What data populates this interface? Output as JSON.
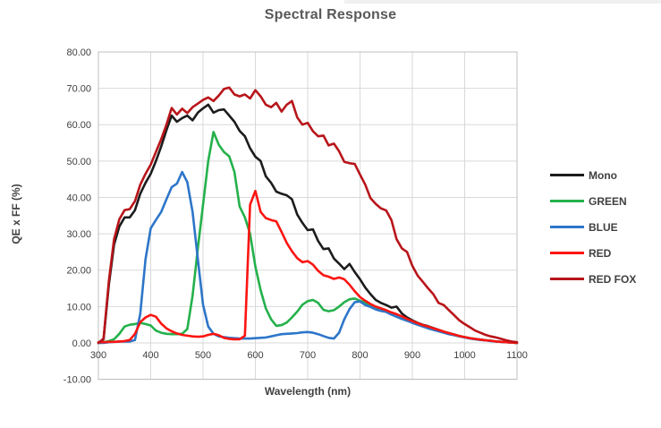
{
  "chart_data": {
    "type": "line",
    "title": "Spectral Response",
    "xlabel": "Wavelength (nm)",
    "ylabel": "QE x FF (%)",
    "xlim": [
      300,
      1100
    ],
    "ylim": [
      -10,
      80
    ],
    "grid": true,
    "legend_position": "right",
    "grid_color": "#d9d9d9",
    "border_color": "#bfbfbf",
    "tick_label_color": "#404040",
    "x_ticks": [
      300,
      400,
      500,
      600,
      700,
      800,
      900,
      1000,
      1100
    ],
    "x_tick_labels": [
      "300",
      "400",
      "500",
      "600",
      "700",
      "800",
      "900",
      "1000",
      "1100"
    ],
    "y_ticks": [
      80,
      70,
      60,
      50,
      40,
      30,
      20,
      10,
      0,
      -10
    ],
    "y_tick_labels": [
      "80.00",
      "70.00",
      "60.00",
      "50.00",
      "40.00",
      "30.00",
      "20.00",
      "10.00",
      "0.00",
      "-10.00"
    ],
    "x": [
      300,
      310,
      320,
      330,
      340,
      350,
      360,
      370,
      380,
      390,
      400,
      410,
      420,
      430,
      440,
      450,
      460,
      470,
      480,
      490,
      500,
      510,
      520,
      530,
      540,
      550,
      560,
      570,
      580,
      590,
      600,
      610,
      620,
      630,
      640,
      650,
      660,
      670,
      680,
      690,
      700,
      710,
      720,
      730,
      740,
      750,
      760,
      770,
      780,
      790,
      800,
      810,
      820,
      830,
      840,
      850,
      860,
      870,
      880,
      890,
      900,
      910,
      920,
      930,
      940,
      950,
      960,
      970,
      980,
      990,
      1000,
      1010,
      1020,
      1030,
      1040,
      1050,
      1060,
      1070,
      1080,
      1090,
      1100
    ],
    "series": [
      {
        "name": "Mono",
        "color": "#1c1c1c",
        "values": [
          0,
          1,
          16,
          27,
          32,
          34.5,
          34.5,
          36.5,
          41,
          44,
          46.5,
          50,
          54,
          58.5,
          62.5,
          60.8,
          61.8,
          62.5,
          61.2,
          63.3,
          64.5,
          65.5,
          63.3,
          64,
          64.2,
          62.5,
          60.8,
          58.3,
          56.8,
          53.5,
          51.2,
          50,
          45.8,
          44,
          41.6,
          41,
          40.6,
          39.5,
          35.3,
          33,
          31,
          31.2,
          28,
          25.8,
          26,
          23.2,
          21.8,
          20.3,
          21.7,
          19.5,
          17.5,
          15.2,
          13.4,
          11.8,
          11,
          10.4,
          9.7,
          10,
          8.1,
          7,
          6.2,
          5.5,
          5,
          4.6,
          4.1,
          3.6,
          3.1,
          2.7,
          2.3,
          1.9,
          1.6,
          1.3,
          1.1,
          0.9,
          0.7,
          0.6,
          0.4,
          0.3,
          0.2,
          0.1,
          0
        ]
      },
      {
        "name": "GREEN",
        "color": "#24b14b",
        "values": [
          0,
          0.2,
          0.5,
          1,
          2.5,
          4.5,
          5,
          5.2,
          5.5,
          5.2,
          4.8,
          3.4,
          2.8,
          2.5,
          2.4,
          2.4,
          2.5,
          3.8,
          13,
          26,
          38,
          50,
          58,
          54.5,
          52.5,
          51.3,
          47,
          37.5,
          34.5,
          30,
          21,
          14.5,
          9.5,
          6.5,
          4.7,
          4.9,
          5.6,
          7,
          8.6,
          10.5,
          11.5,
          11.8,
          11,
          9.1,
          8.7,
          9,
          10,
          11.2,
          12,
          12.2,
          11.6,
          11.1,
          10.1,
          9.4,
          9,
          8.6,
          7.8,
          7.2,
          6.6,
          6.1,
          5.6,
          5.1,
          4.6,
          4.2,
          3.8,
          3.4,
          3,
          2.6,
          2.2,
          1.9,
          1.6,
          1.3,
          1.1,
          0.9,
          0.7,
          0.6,
          0.4,
          0.3,
          0.2,
          0.1,
          0
        ]
      },
      {
        "name": "BLUE",
        "color": "#2d76c9",
        "values": [
          0,
          0,
          0.2,
          0.3,
          0.4,
          0.4,
          0.4,
          0.8,
          8,
          23,
          31.5,
          33.8,
          36,
          39.5,
          42.8,
          43.8,
          47,
          44.2,
          36,
          23,
          10.5,
          4.5,
          2.5,
          1.8,
          1.6,
          1.4,
          1.3,
          1.2,
          1.2,
          1.2,
          1.3,
          1.4,
          1.5,
          1.8,
          2.1,
          2.4,
          2.5,
          2.6,
          2.7,
          2.9,
          3,
          2.8,
          2.4,
          1.9,
          1.4,
          1.2,
          2.8,
          6.5,
          9.3,
          11.2,
          11.4,
          10.4,
          9.9,
          9.2,
          8.8,
          8.5,
          7.8,
          7.2,
          6.6,
          6.1,
          5.5,
          5,
          4.5,
          4,
          3.6,
          3.2,
          2.8,
          2.4,
          2.1,
          1.8,
          1.5,
          1.2,
          1,
          0.8,
          0.7,
          0.5,
          0.4,
          0.3,
          0.2,
          0.1,
          0
        ]
      },
      {
        "name": "RED",
        "color": "#fb1511",
        "values": [
          0.2,
          0.2,
          0.3,
          0.3,
          0.4,
          0.5,
          0.8,
          2.5,
          5.7,
          7,
          7.7,
          7.2,
          5.3,
          4,
          3.2,
          2.6,
          2.2,
          2,
          1.8,
          1.7,
          1.8,
          2.2,
          2.5,
          2.1,
          1.4,
          1.1,
          1,
          1,
          2,
          38,
          41.8,
          36,
          34.3,
          33.8,
          33.4,
          30.5,
          27.5,
          25.2,
          23.3,
          22.2,
          22.5,
          21.5,
          19.8,
          18.6,
          18.2,
          17.6,
          18,
          17.5,
          16,
          14.2,
          12.6,
          11.6,
          10.7,
          10,
          9.5,
          9,
          8.4,
          7.9,
          7.3,
          6.6,
          6,
          5.4,
          4.9,
          4.5,
          4,
          3.6,
          3.1,
          2.7,
          2.3,
          1.9,
          1.6,
          1.3,
          1.1,
          0.9,
          0.7,
          0.6,
          0.4,
          0.3,
          0.2,
          0.1,
          0
        ]
      },
      {
        "name": "RED FOX",
        "color": "#b8151a",
        "values": [
          0,
          1.2,
          17,
          28.5,
          34,
          36.5,
          36.8,
          39,
          43.5,
          46.5,
          49,
          52.5,
          56,
          60,
          64.6,
          62.8,
          64.4,
          63.2,
          64.8,
          65.8,
          66.8,
          67.5,
          66.5,
          68,
          69.8,
          70.2,
          68.3,
          67.8,
          68.3,
          67.2,
          69.5,
          67.8,
          65.5,
          64.8,
          66,
          63.6,
          65.5,
          66.5,
          62,
          60,
          60.5,
          58.2,
          56.8,
          57,
          54.3,
          54.8,
          52.7,
          49.8,
          49.4,
          49.2,
          46.3,
          43.5,
          39.8,
          38.2,
          37,
          36.4,
          33.8,
          28.5,
          26,
          25,
          21.2,
          18.5,
          16.8,
          15,
          13.4,
          11,
          10.4,
          9,
          7.6,
          6.2,
          5.2,
          4.3,
          3.4,
          2.8,
          2.2,
          1.8,
          1.5,
          1.1,
          0.7,
          0.4,
          0.2
        ]
      }
    ]
  }
}
